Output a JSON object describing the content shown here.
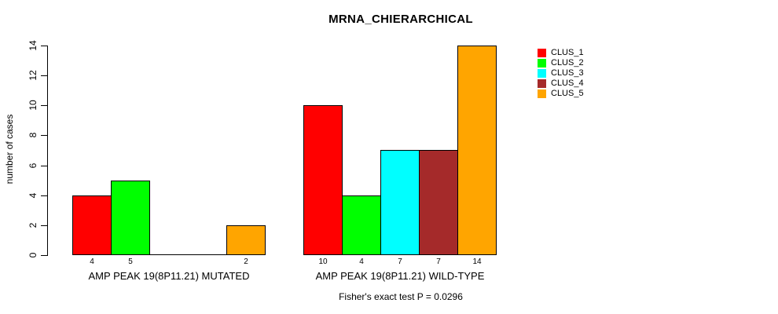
{
  "chart_data": {
    "type": "bar",
    "title": "MRNA_CHIERARCHICAL",
    "xlabel": "",
    "ylabel": "number of cases",
    "ylim": [
      0,
      14
    ],
    "yticks": [
      0,
      2,
      4,
      6,
      8,
      10,
      12,
      14
    ],
    "grid": false,
    "legend_position": "right",
    "categories": [
      "AMP PEAK 19(8P11.21) MUTATED",
      "AMP PEAK 19(8P11.21) WILD-TYPE"
    ],
    "series": [
      {
        "name": "CLUS_1",
        "color": "#ff0000",
        "values": [
          4,
          10
        ]
      },
      {
        "name": "CLUS_2",
        "color": "#00ff00",
        "values": [
          5,
          4
        ]
      },
      {
        "name": "CLUS_3",
        "color": "#00ffff",
        "values": [
          0,
          7
        ]
      },
      {
        "name": "CLUS_4",
        "color": "#a52a2a",
        "values": [
          0,
          7
        ]
      },
      {
        "name": "CLUS_5",
        "color": "#ffa500",
        "values": [
          2,
          14
        ]
      }
    ],
    "bar_value_labels_shown": true,
    "footnote": "Fisher's exact test P = 0.0296"
  }
}
